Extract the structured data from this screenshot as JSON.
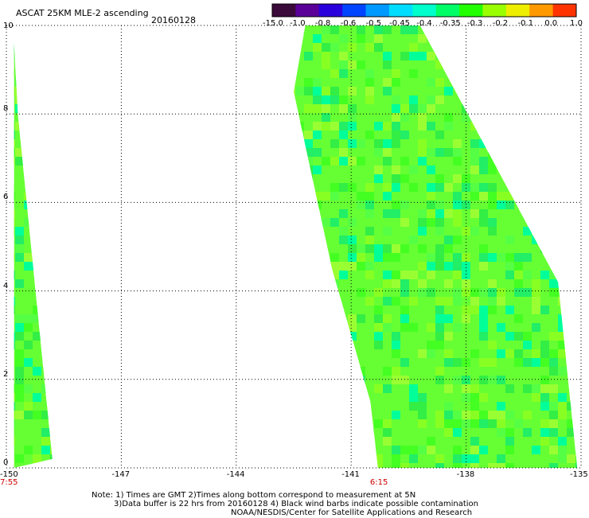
{
  "header": {
    "title": "ASCAT 25KM MLE-2 ascending",
    "date": "20160128"
  },
  "colorbar": {
    "colors": [
      "#3a0a3a",
      "#5a0099",
      "#2a00dd",
      "#0044ff",
      "#0099ff",
      "#00ddff",
      "#00ffcc",
      "#00ff66",
      "#22ff00",
      "#99ff00",
      "#eeee00",
      "#ff9900",
      "#ff3300"
    ],
    "labels": [
      "-15.0",
      "-1.0",
      "-0.8",
      "-0.6",
      "-0.5",
      "-0.45",
      "-0.4",
      "-0.35",
      "-0.3",
      "-0.2",
      "-0.1",
      "0.0",
      "1.0"
    ]
  },
  "axes": {
    "x_ticks": [
      "-150",
      "-147",
      "-144",
      "-141",
      "-138",
      "-135"
    ],
    "y_ticks": [
      "0",
      "2",
      "4",
      "6",
      "8",
      "10"
    ],
    "x_range": [
      -150,
      -135
    ],
    "y_range": [
      0,
      10
    ],
    "grid": "dotted"
  },
  "times": [
    {
      "label": "7:55",
      "lon": -150
    },
    {
      "label": "6:15",
      "lon": -140.3
    }
  ],
  "notes": {
    "line1": "Note: 1) Times are GMT 2)Times along bottom correspond to measurement at 5N",
    "line2": "3)Data buffer is 22 hrs from 20160128 4) Black wind barbs indicate possible contamination",
    "line3": "NOAA/NESDIS/Center for Satellite Applications and Research"
  },
  "swaths": [
    {
      "name": "west-swath",
      "polygon": [
        [
          -149.8,
          9.6
        ],
        [
          -149.7,
          8.0
        ],
        [
          -148.8,
          0.2
        ],
        [
          -149.8,
          0.0
        ]
      ]
    },
    {
      "name": "east-swath",
      "polygon": [
        [
          -142.2,
          10.0
        ],
        [
          -139.2,
          10.0
        ],
        [
          -135.6,
          4.2
        ],
        [
          -135.1,
          0.0
        ],
        [
          -140.3,
          0.0
        ],
        [
          -140.5,
          1.5
        ],
        [
          -141.5,
          4.5
        ],
        [
          -142.5,
          8.5
        ]
      ]
    }
  ]
}
